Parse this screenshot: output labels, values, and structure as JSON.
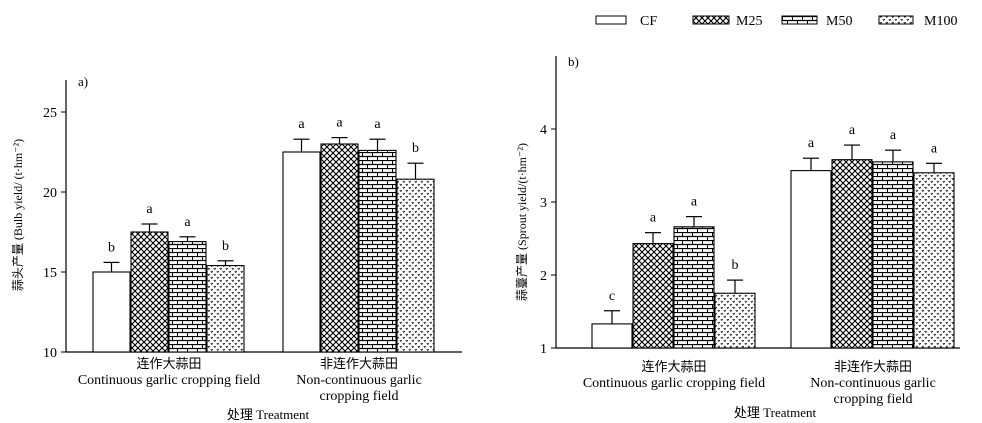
{
  "legend": {
    "position": "top-right",
    "items": [
      {
        "label": "CF",
        "pattern": "none"
      },
      {
        "label": "M25",
        "pattern": "diagonal-hatch"
      },
      {
        "label": "M50",
        "pattern": "brick"
      },
      {
        "label": "M100",
        "pattern": "dots"
      }
    ]
  },
  "xlabel": "处理 Treatment",
  "chart_data": [
    {
      "type": "bar",
      "panel_label": "a)",
      "title": "",
      "ylabel": "蒜头产量 (Bulb yield/ (t·hm⁻²)",
      "xlabel": "处理 Treatment",
      "ylim": [
        10,
        27
      ],
      "yticks": [
        10,
        15,
        20,
        25
      ],
      "grid": false,
      "categories": [
        {
          "cn": "连作大蒜田",
          "en": [
            "Continuous garlic cropping field"
          ]
        },
        {
          "cn": "非连作大蒜田",
          "en": [
            "Non-continuous garlic",
            "cropping field"
          ]
        }
      ],
      "series": [
        {
          "name": "CF",
          "values": [
            15.0,
            22.5
          ],
          "errors": [
            0.6,
            0.8
          ],
          "letters": [
            "b",
            "a"
          ]
        },
        {
          "name": "M25",
          "values": [
            17.5,
            23.0
          ],
          "errors": [
            0.5,
            0.4
          ],
          "letters": [
            "a",
            "a"
          ]
        },
        {
          "name": "M50",
          "values": [
            16.9,
            22.6
          ],
          "errors": [
            0.3,
            0.7
          ],
          "letters": [
            "a",
            "a"
          ]
        },
        {
          "name": "M100",
          "values": [
            15.4,
            20.8
          ],
          "errors": [
            0.3,
            1.0
          ],
          "letters": [
            "b",
            "b"
          ]
        }
      ]
    },
    {
      "type": "bar",
      "panel_label": "b)",
      "title": "",
      "ylabel": "蒜薹产量 (Sprout yield/(t·hm⁻²)",
      "xlabel": "处理 Treatment",
      "ylim": [
        1,
        5
      ],
      "yticks": [
        1,
        2,
        3,
        4
      ],
      "grid": false,
      "categories": [
        {
          "cn": "连作大蒜田",
          "en": [
            "Continuous garlic cropping field"
          ]
        },
        {
          "cn": "非连作大蒜田",
          "en": [
            "Non-continuous garlic",
            "cropping field"
          ]
        }
      ],
      "series": [
        {
          "name": "CF",
          "values": [
            1.33,
            3.43
          ],
          "errors": [
            0.18,
            0.17
          ],
          "letters": [
            "c",
            "a"
          ]
        },
        {
          "name": "M25",
          "values": [
            2.43,
            3.58
          ],
          "errors": [
            0.15,
            0.2
          ],
          "letters": [
            "a",
            "a"
          ]
        },
        {
          "name": "M50",
          "values": [
            2.66,
            3.55
          ],
          "errors": [
            0.14,
            0.16
          ],
          "letters": [
            "a",
            "a"
          ]
        },
        {
          "name": "M100",
          "values": [
            1.75,
            3.4
          ],
          "errors": [
            0.18,
            0.13
          ],
          "letters": [
            "b",
            "a"
          ]
        }
      ]
    }
  ]
}
